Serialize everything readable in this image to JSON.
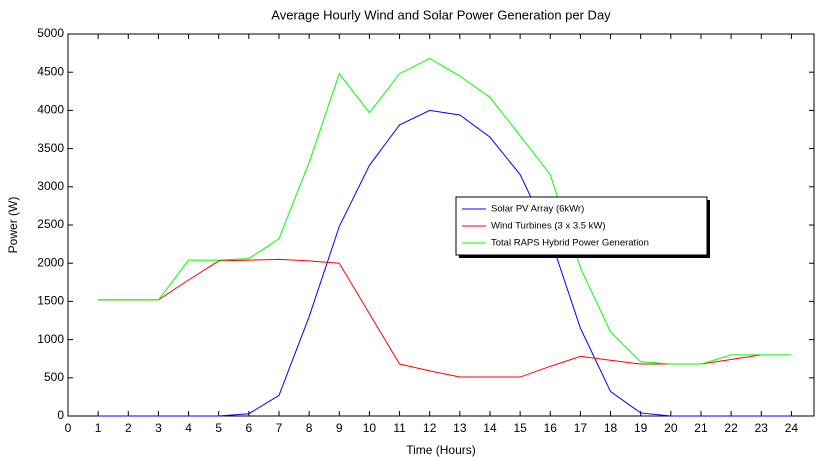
{
  "chart_data": {
    "type": "line",
    "title": "Average Hourly Wind and Solar Power Generation per Day",
    "xlabel": "Time (Hours)",
    "ylabel": "Power (W)",
    "x": [
      1,
      2,
      3,
      4,
      5,
      6,
      7,
      8,
      9,
      10,
      11,
      12,
      13,
      14,
      15,
      16,
      17,
      18,
      19,
      20,
      21,
      22,
      23,
      24
    ],
    "series": [
      {
        "name": "Solar PV Array  (6kWr)",
        "color": "#0000ff",
        "values": [
          0,
          0,
          0,
          0,
          0,
          30,
          270,
          1300,
          2480,
          3280,
          3810,
          4000,
          3940,
          3650,
          3160,
          2330,
          1150,
          320,
          40,
          0,
          0,
          0,
          0,
          0
        ]
      },
      {
        "name": "Wind Turbines (3 x 3.5 kW)",
        "color": "#ff0000",
        "values": [
          1520,
          1520,
          1520,
          1780,
          2030,
          2040,
          2050,
          2030,
          2000,
          1340,
          680,
          590,
          510,
          510,
          510,
          650,
          780,
          730,
          680,
          680,
          680,
          740,
          800,
          null
        ]
      },
      {
        "name": "Total RAPS Hybrid Power Generation",
        "color": "#00ff00",
        "values": [
          1520,
          1520,
          1520,
          2040,
          2040,
          2060,
          2320,
          3320,
          4480,
          3970,
          4480,
          4680,
          4450,
          4170,
          3670,
          3160,
          1940,
          1100,
          710,
          680,
          680,
          800,
          800,
          800
        ]
      }
    ],
    "xlim": [
      0,
      24.75
    ],
    "xticks": [
      0,
      1,
      2,
      3,
      4,
      5,
      6,
      7,
      8,
      9,
      10,
      11,
      12,
      13,
      14,
      15,
      16,
      17,
      18,
      19,
      20,
      21,
      22,
      23,
      24
    ],
    "ylim": [
      0,
      5000
    ],
    "yticks": [
      0,
      500,
      1000,
      1500,
      2000,
      2500,
      3000,
      3500,
      4000,
      4500,
      5000
    ],
    "grid": false
  }
}
